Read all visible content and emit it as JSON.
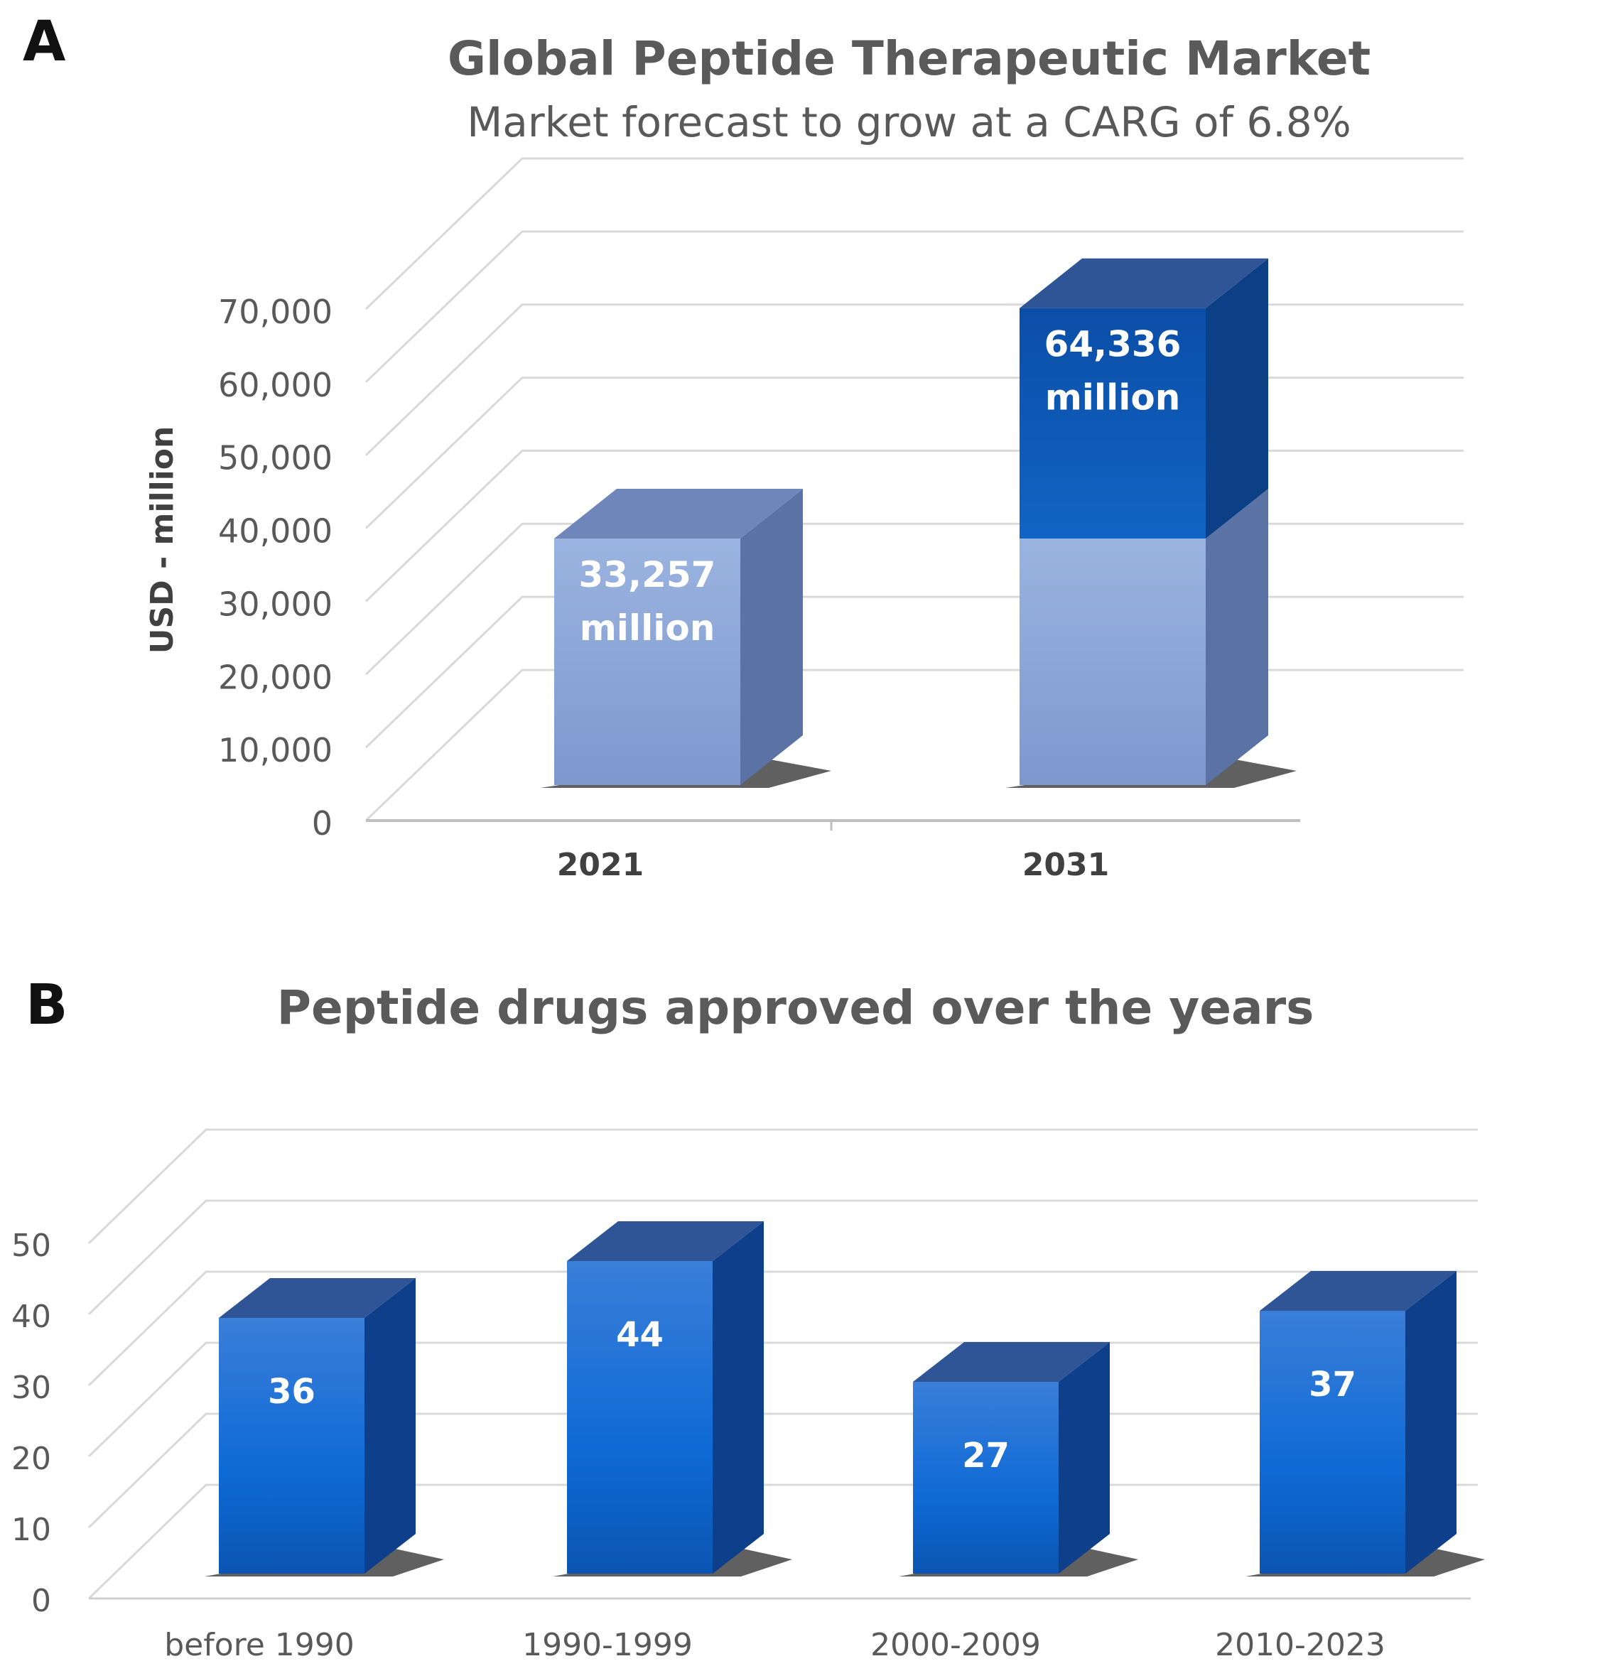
{
  "panels": {
    "a_label": "A",
    "b_label": "B"
  },
  "chart_data": [
    {
      "type": "bar",
      "title": "Global Peptide Therapeutic Market",
      "subtitle": "Market forecast to grow at a CARG of 6.8%",
      "xlabel": "",
      "ylabel": "USD - million",
      "categories": [
        "2021",
        "2031"
      ],
      "values": [
        33257,
        64336
      ],
      "data_labels": [
        [
          "33,257",
          "million"
        ],
        [
          "64,336",
          "million"
        ]
      ],
      "ylim": [
        0,
        70000
      ],
      "yticks": [
        0,
        10000,
        20000,
        30000,
        40000,
        50000,
        60000,
        70000
      ],
      "ytick_labels": [
        "0",
        "10,000",
        "20,000",
        "30,000",
        "40,000",
        "50,000",
        "60,000",
        "70,000"
      ],
      "grid": true,
      "colors": {
        "base": "#8EA9DB",
        "base_side": "#5B72A5",
        "base_top": "#6E86BA",
        "growth": "#0E5CB8",
        "growth_side": "#0B3F86",
        "growth_top": "#2F5597"
      }
    },
    {
      "type": "bar",
      "title": "Peptide drugs approved over the years",
      "xlabel": "",
      "ylabel": "",
      "categories": [
        "before 1990",
        "1990-1999",
        "2000-2009",
        "2010-2023"
      ],
      "values": [
        36,
        44,
        27,
        37
      ],
      "ylim": [
        0,
        50
      ],
      "yticks": [
        0,
        10,
        20,
        30,
        40,
        50
      ],
      "ytick_labels": [
        "0",
        "10",
        "20",
        "30",
        "40",
        "50"
      ],
      "grid": true,
      "colors": {
        "front": "#1A6BCC",
        "side": "#0D3F8A",
        "top": "#2F5597"
      }
    }
  ]
}
